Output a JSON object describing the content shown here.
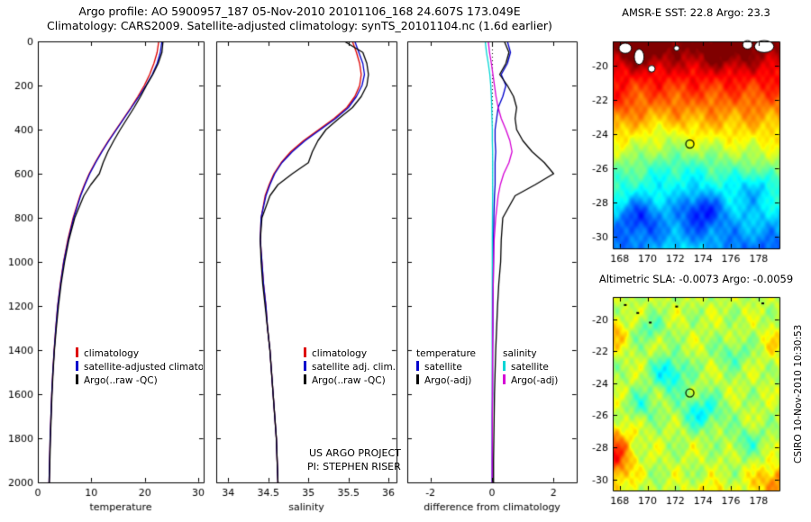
{
  "titles": {
    "line1": "Argo profile: AO 5900957_187 05-Nov-2010 20101106_168 24.607S 173.049E",
    "line2": "Climatology: CARS2009. Satellite-adjusted climatology: synTS_20101104.nc (1.6d earlier)"
  },
  "credit": "CSIRO 10-Nov-2010 10:30:53",
  "colors": {
    "climatology": "#dd0000",
    "satellite_adjusted": "#0000cc",
    "argo": "#000000",
    "salinity_satellite": "#00d5d5",
    "salinity_argo": "#d500d5"
  },
  "depths_m": [
    0,
    50,
    100,
    150,
    200,
    250,
    300,
    350,
    400,
    450,
    500,
    550,
    600,
    650,
    700,
    800,
    900,
    1000,
    1100,
    1200,
    1300,
    1400,
    1500,
    1600,
    1700,
    1800,
    1900,
    2000
  ],
  "chart_data": [
    {
      "type": "line",
      "name": "temperature-profile",
      "xlabel": "temperature",
      "xlim": [
        0,
        31
      ],
      "xticks": [
        0,
        10,
        20,
        30
      ],
      "ylim": [
        0,
        2000
      ],
      "yticks": [
        0,
        200,
        400,
        600,
        800,
        1000,
        1200,
        1400,
        1600,
        1800,
        2000
      ],
      "ytick_labels": true,
      "series": [
        {
          "name": "climatology",
          "color": "#dd0000",
          "values": [
            22.6,
            22.3,
            21.7,
            20.9,
            19.9,
            18.7,
            17.4,
            16.0,
            14.6,
            13.2,
            11.9,
            10.7,
            9.6,
            8.7,
            7.9,
            6.6,
            5.6,
            4.8,
            4.2,
            3.7,
            3.35,
            3.05,
            2.8,
            2.6,
            2.45,
            2.3,
            2.2,
            2.1
          ]
        },
        {
          "name": "satellite-adjusted climatology",
          "color": "#0000cc",
          "values": [
            23.2,
            22.9,
            22.3,
            21.4,
            20.2,
            18.9,
            17.5,
            16.1,
            14.7,
            13.3,
            12.0,
            10.8,
            9.7,
            8.8,
            8.0,
            6.7,
            5.7,
            4.85,
            4.25,
            3.72,
            3.36,
            3.06,
            2.8,
            2.6,
            2.45,
            2.3,
            2.2,
            2.1
          ]
        },
        {
          "name": "Argo(..raw -QC)",
          "color": "#000000",
          "values": [
            23.4,
            23.2,
            22.5,
            21.5,
            20.3,
            19.2,
            18.0,
            16.7,
            15.4,
            14.2,
            13.1,
            12.2,
            11.5,
            9.9,
            8.6,
            6.9,
            5.8,
            5.0,
            4.35,
            3.85,
            3.45,
            3.1,
            2.85,
            2.65,
            2.5,
            2.35,
            2.25,
            2.15
          ]
        }
      ],
      "legend": [
        {
          "label": "climatology",
          "color": "#dd0000"
        },
        {
          "label": "satellite-adjusted climatology",
          "color": "#0000cc"
        },
        {
          "label": "Argo(..raw -QC)",
          "color": "#000000"
        }
      ]
    },
    {
      "type": "line",
      "name": "salinity-profile",
      "xlabel": "salinity",
      "xlim": [
        33.85,
        36.1
      ],
      "xticks": [
        34,
        34.5,
        35,
        35.5,
        36
      ],
      "ylim": [
        0,
        2000
      ],
      "yticks": [
        0,
        200,
        400,
        600,
        800,
        1000,
        1200,
        1400,
        1600,
        1800,
        2000
      ],
      "ytick_labels": false,
      "series": [
        {
          "name": "climatology",
          "color": "#dd0000",
          "values": [
            35.55,
            35.6,
            35.64,
            35.66,
            35.64,
            35.58,
            35.48,
            35.32,
            35.13,
            34.94,
            34.78,
            34.66,
            34.57,
            34.51,
            34.46,
            34.41,
            34.4,
            34.42,
            34.44,
            34.47,
            34.49,
            34.52,
            34.54,
            34.56,
            34.58,
            34.6,
            34.61,
            34.62
          ]
        },
        {
          "name": "satellite adj. clim.",
          "color": "#0000cc",
          "values": [
            35.58,
            35.63,
            35.68,
            35.7,
            35.67,
            35.6,
            35.5,
            35.34,
            35.15,
            34.96,
            34.8,
            34.67,
            34.58,
            34.52,
            34.47,
            34.41,
            34.4,
            34.42,
            34.44,
            34.47,
            34.49,
            34.52,
            34.54,
            34.56,
            34.58,
            34.6,
            34.61,
            34.62
          ]
        },
        {
          "name": "Argo(..raw -QC)",
          "color": "#000000",
          "values": [
            35.45,
            35.68,
            35.73,
            35.75,
            35.73,
            35.66,
            35.55,
            35.38,
            35.22,
            35.12,
            35.05,
            35.0,
            34.8,
            34.62,
            34.52,
            34.42,
            34.4,
            34.41,
            34.43,
            34.46,
            34.49,
            34.52,
            34.54,
            34.56,
            34.58,
            34.6,
            34.61,
            34.62
          ]
        }
      ],
      "legend": [
        {
          "label": "climatology",
          "color": "#dd0000"
        },
        {
          "label": "satellite adj. clim.",
          "color": "#0000cc"
        },
        {
          "label": "Argo(..raw -QC)",
          "color": "#000000"
        }
      ],
      "notes": [
        "US ARGO PROJECT",
        "PI: STEPHEN RISER"
      ]
    },
    {
      "type": "line",
      "name": "difference-from-climatology",
      "xlabel": "difference from climatology",
      "xlim": [
        -2.75,
        2.75
      ],
      "xticks": [
        -2,
        0,
        2
      ],
      "ylim": [
        0,
        2000
      ],
      "yticks": [
        0,
        200,
        400,
        600,
        800,
        1000,
        1200,
        1400,
        1600,
        1800,
        2000
      ],
      "ytick_labels": false,
      "zero_line": true,
      "series": [
        {
          "name": "salinity satellite",
          "color": "#00d5d5",
          "values": [
            -0.22,
            -0.18,
            -0.12,
            -0.07,
            -0.04,
            -0.02,
            -0.01,
            0,
            0.01,
            0.01,
            0.02,
            0.02,
            0.02,
            0.02,
            0.02,
            0.015,
            0.01,
            0.01,
            0.01,
            0.01,
            0.005,
            0.005,
            0.005,
            0.005,
            0.005,
            0.005,
            0.005,
            0.005
          ]
        },
        {
          "name": "temperature satellite",
          "color": "#0000cc",
          "values": [
            0.5,
            0.6,
            0.5,
            0.3,
            0.45,
            0.35,
            0.2,
            0.15,
            0.1,
            0.1,
            0.12,
            0.1,
            0.1,
            0.1,
            0.08,
            0.06,
            0.05,
            0.05,
            0.04,
            0.03,
            0.03,
            0.02,
            0.02,
            0.02,
            0.01,
            0.01,
            0.01,
            0.01
          ]
        },
        {
          "name": "salinity Argo(-adj)",
          "color": "#d500d5",
          "values": [
            -0.12,
            -0.08,
            -0.02,
            0.03,
            0.08,
            0.13,
            0.2,
            0.3,
            0.45,
            0.58,
            0.65,
            0.55,
            0.38,
            0.27,
            0.2,
            0.12,
            0.07,
            0.05,
            0.04,
            0.03,
            0.02,
            0.02,
            0.015,
            0.01,
            0.01,
            0.01,
            0.005,
            0.005
          ]
        },
        {
          "name": "temperature Argo(-adj)",
          "color": "#000000",
          "values": [
            0.4,
            0.55,
            0.45,
            0.25,
            0.5,
            0.7,
            0.8,
            0.75,
            0.8,
            1.0,
            1.3,
            1.7,
            2.0,
            1.4,
            0.75,
            0.35,
            0.3,
            0.28,
            0.22,
            0.18,
            0.15,
            0.12,
            0.1,
            0.08,
            0.07,
            0.06,
            0.05,
            0.05
          ]
        }
      ],
      "legend_cols": [
        {
          "header": "temperature",
          "items": [
            {
              "label": "satellite",
              "color": "#0000cc"
            },
            {
              "label": "Argo(-adj)",
              "color": "#000000"
            }
          ]
        },
        {
          "header": "salinity",
          "items": [
            {
              "label": "satellite",
              "color": "#00d5d5"
            },
            {
              "label": "Argo(-adj)",
              "color": "#d500d5"
            }
          ]
        }
      ]
    },
    {
      "type": "heatmap",
      "name": "amsr-e-sst-map",
      "title": "AMSR-E SST: 22.8 Argo: 23.3",
      "xlim": [
        167.5,
        179.5
      ],
      "ylim": [
        -30.7,
        -18.6
      ],
      "xticks": [
        168,
        170,
        172,
        174,
        176,
        178
      ],
      "yticks": [
        -20,
        -22,
        -24,
        -26,
        -28,
        -30
      ],
      "argo_marker": {
        "lon": 173.05,
        "lat": -24.6
      },
      "field": {
        "base": [
          1.0,
          0.22
        ],
        "texture_amp": 0.035,
        "blobs": [
          {
            "lon": 169.5,
            "lat": -19.2,
            "sx": 1.6,
            "sy": 0.9,
            "a": 0.1
          },
          {
            "lon": 175.5,
            "lat": -19.3,
            "sx": 2.2,
            "sy": 0.9,
            "a": 0.08
          },
          {
            "lon": 172.5,
            "lat": -26.2,
            "sx": 4.0,
            "sy": 1.6,
            "a": -0.1
          },
          {
            "lon": 169.4,
            "lat": -28.8,
            "sx": 1.5,
            "sy": 1.1,
            "a": -0.16
          },
          {
            "lon": 173.9,
            "lat": -28.5,
            "sx": 1.7,
            "sy": 1.1,
            "a": -0.2
          },
          {
            "lon": 177.6,
            "lat": -27.2,
            "sx": 1.3,
            "sy": 1.0,
            "a": -0.12
          },
          {
            "lon": 171.2,
            "lat": -24.0,
            "sx": 1.2,
            "sy": 0.8,
            "a": -0.05
          },
          {
            "lon": 172.5,
            "lat": -31.3,
            "sx": 3.0,
            "sy": 1.0,
            "a": 0.18
          },
          {
            "lon": 167.8,
            "lat": -22.5,
            "sx": 1.0,
            "sy": 1.0,
            "a": 0.06
          }
        ]
      },
      "islands": [
        {
          "lon": 168.4,
          "lat": -19.0,
          "rx": 0.45,
          "ry": 0.3
        },
        {
          "lon": 169.4,
          "lat": -19.5,
          "rx": 0.35,
          "ry": 0.45
        },
        {
          "lon": 170.3,
          "lat": -20.2,
          "rx": 0.25,
          "ry": 0.2
        },
        {
          "lon": 178.4,
          "lat": -18.9,
          "rx": 0.7,
          "ry": 0.35
        },
        {
          "lon": 177.2,
          "lat": -18.8,
          "rx": 0.35,
          "ry": 0.25
        },
        {
          "lon": 172.1,
          "lat": -19.0,
          "rx": 0.2,
          "ry": 0.15
        }
      ]
    },
    {
      "type": "heatmap",
      "name": "altimetric-sla-map",
      "title": "Altimetric SLA: -0.0073 Argo: -0.0059",
      "xlim": [
        167.5,
        179.5
      ],
      "ylim": [
        -30.7,
        -18.6
      ],
      "xticks": [
        168,
        170,
        172,
        174,
        176,
        178
      ],
      "yticks": [
        -20,
        -22,
        -24,
        -26,
        -28,
        -30
      ],
      "argo_marker": {
        "lon": 173.05,
        "lat": -24.6
      },
      "field": {
        "base": [
          0.56,
          0.56
        ],
        "texture_amp": 0.05,
        "blobs": [
          {
            "lon": 171.6,
            "lat": -23.4,
            "sx": 1.3,
            "sy": 1.1,
            "a": -0.2
          },
          {
            "lon": 173.9,
            "lat": -25.8,
            "sx": 1.5,
            "sy": 1.1,
            "a": -0.18
          },
          {
            "lon": 169.6,
            "lat": -25.4,
            "sx": 1.0,
            "sy": 0.9,
            "a": -0.12
          },
          {
            "lon": 176.1,
            "lat": -22.2,
            "sx": 1.2,
            "sy": 0.9,
            "a": -0.1
          },
          {
            "lon": 177.2,
            "lat": -27.6,
            "sx": 1.2,
            "sy": 0.9,
            "a": -0.1
          },
          {
            "lon": 170.2,
            "lat": -20.6,
            "sx": 1.1,
            "sy": 0.8,
            "a": -0.1
          },
          {
            "lon": 167.5,
            "lat": -28.6,
            "sx": 1.4,
            "sy": 1.8,
            "a": 0.28
          },
          {
            "lon": 167.6,
            "lat": -20.8,
            "sx": 0.9,
            "sy": 1.0,
            "a": 0.14
          },
          {
            "lon": 179.3,
            "lat": -30.2,
            "sx": 1.6,
            "sy": 1.1,
            "a": 0.2
          },
          {
            "lon": 174.6,
            "lat": -31.0,
            "sx": 1.8,
            "sy": 0.8,
            "a": 0.1
          },
          {
            "lon": 179.2,
            "lat": -21.5,
            "sx": 0.8,
            "sy": 1.2,
            "a": 0.08
          }
        ]
      },
      "island_dots": [
        {
          "lon": 168.4,
          "lat": -19.1
        },
        {
          "lon": 169.3,
          "lat": -19.6
        },
        {
          "lon": 170.2,
          "lat": -20.2
        },
        {
          "lon": 178.3,
          "lat": -19.0
        },
        {
          "lon": 172.1,
          "lat": -19.2
        }
      ]
    }
  ]
}
